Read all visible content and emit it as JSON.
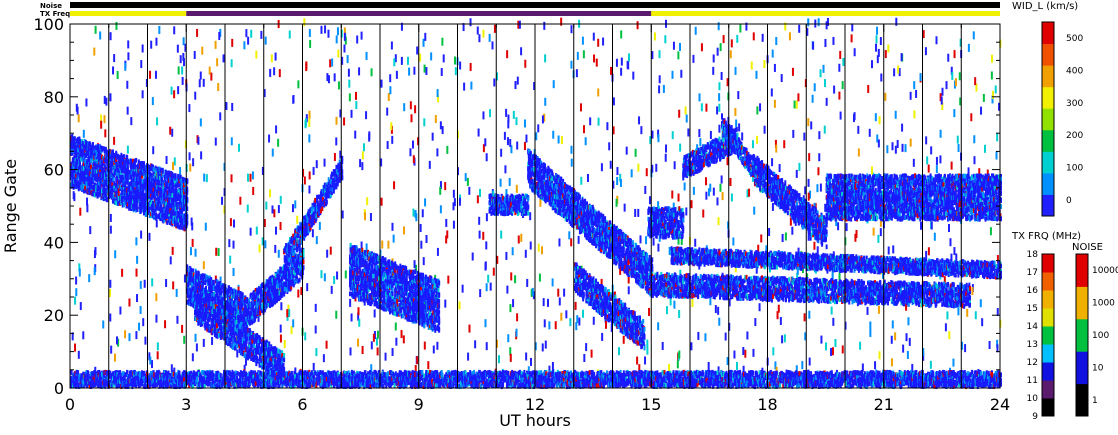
{
  "chart_data": {
    "type": "heatmap",
    "xlabel": "UT hours",
    "ylabel": "Range Gate",
    "xlim": [
      0,
      24
    ],
    "ylim": [
      0,
      100
    ],
    "x_ticks": [
      "0",
      "3",
      "6",
      "9",
      "12",
      "15",
      "18",
      "21",
      "24"
    ],
    "y_ticks": [
      "0",
      "20",
      "40",
      "60",
      "80",
      "100"
    ],
    "hour_markers": [
      1,
      2,
      3,
      4,
      5,
      6,
      7,
      8,
      9,
      10,
      11,
      12,
      13,
      14,
      15,
      16,
      17,
      18,
      19,
      20,
      21,
      22,
      23
    ],
    "top_bars": {
      "noise_label": "Noise",
      "txfreq_label": "TX Freq",
      "noise_color": "#000000",
      "txfreq_segments": [
        {
          "start": 0,
          "end": 3,
          "color": "#f0f000"
        },
        {
          "start": 3,
          "end": 15,
          "color": "#5a1a6e"
        },
        {
          "start": 15,
          "end": 24,
          "color": "#f0f000"
        }
      ]
    },
    "colorbars": [
      {
        "label": "WID_L (km/s)",
        "ticks": [
          "0",
          "100",
          "200",
          "300",
          "400",
          "500"
        ],
        "colors": [
          "#2020ff",
          "#0090ff",
          "#00d0d0",
          "#00c040",
          "#90e000",
          "#f0f000",
          "#f0a000",
          "#f05000",
          "#e00000"
        ]
      },
      {
        "label": "TX FRQ (MHz)",
        "ticks": [
          "9",
          "10",
          "11",
          "12",
          "13",
          "14",
          "15",
          "16",
          "17",
          "18"
        ],
        "colors": [
          "#000000",
          "#5a1a6e",
          "#1010e0",
          "#00c0ff",
          "#00c040",
          "#e0e000",
          "#f0b000",
          "#f06000",
          "#e00000"
        ]
      },
      {
        "label": "NOISE",
        "ticks": [
          "1",
          "10",
          "100",
          "1000",
          "10000"
        ],
        "colors": [
          "#000000",
          "#1010e0",
          "#00c040",
          "#f0b000",
          "#e00000"
        ]
      }
    ],
    "series": [
      {
        "segments": [
          {
            "x0": 0.0,
            "x1": 3.0,
            "y0": 62,
            "y1": 50,
            "width": 14
          },
          {
            "x0": 3.0,
            "x1": 4.5,
            "y0": 28,
            "y1": 20,
            "width": 10
          },
          {
            "x0": 4.5,
            "x1": 6.0,
            "y0": 20,
            "y1": 34,
            "width": 8
          },
          {
            "x0": 3.2,
            "x1": 5.5,
            "y0": 22,
            "y1": 5,
            "width": 8
          },
          {
            "x0": 5.5,
            "x1": 7.0,
            "y0": 35,
            "y1": 60,
            "width": 6
          },
          {
            "x0": 7.2,
            "x1": 9.5,
            "y0": 32,
            "y1": 22,
            "width": 14
          },
          {
            "x0": 0.0,
            "x1": 24.0,
            "y0": 2,
            "y1": 2,
            "width": 4
          },
          {
            "x0": 10.8,
            "x1": 11.8,
            "y0": 50,
            "y1": 50,
            "width": 5
          },
          {
            "x0": 11.8,
            "x1": 15.0,
            "y0": 60,
            "y1": 30,
            "width": 10
          },
          {
            "x0": 13.0,
            "x1": 14.8,
            "y0": 30,
            "y1": 14,
            "width": 8
          },
          {
            "x0": 14.9,
            "x1": 15.8,
            "y0": 45,
            "y1": 45,
            "width": 8
          },
          {
            "x0": 15.8,
            "x1": 17.2,
            "y0": 60,
            "y1": 68,
            "width": 6
          },
          {
            "x0": 16.8,
            "x1": 17.6,
            "y0": 72,
            "y1": 60,
            "width": 5
          },
          {
            "x0": 17.6,
            "x1": 19.5,
            "y0": 60,
            "y1": 42,
            "width": 8
          },
          {
            "x0": 19.5,
            "x1": 24.0,
            "y0": 52,
            "y1": 52,
            "width": 12
          },
          {
            "x0": 15.0,
            "x1": 23.2,
            "y0": 28,
            "y1": 25,
            "width": 6
          },
          {
            "x0": 15.5,
            "x1": 24.0,
            "y0": 36,
            "y1": 32,
            "width": 4
          }
        ]
      }
    ]
  }
}
